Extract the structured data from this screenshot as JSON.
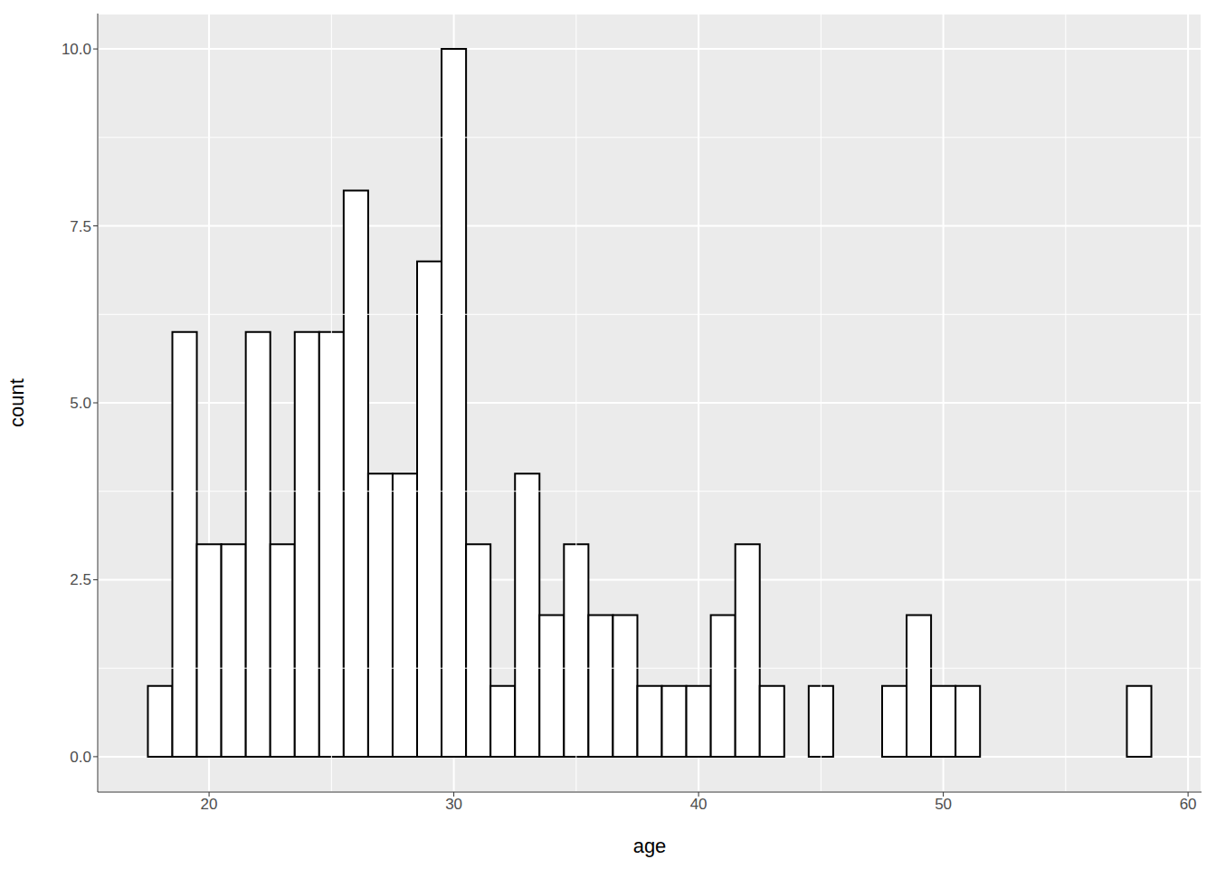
{
  "chart_data": {
    "type": "histogram",
    "x_label": "age",
    "y_label": "count",
    "bins": [
      17.5,
      18.5,
      19.5,
      20.5,
      21.5,
      22.5,
      23.5,
      24.5,
      25.5,
      26.5,
      27.5,
      28.5,
      29.5,
      30.5,
      31.5,
      32.5,
      33.5,
      34.5,
      35.5,
      36.5,
      37.5,
      38.5,
      39.5,
      40.5,
      41.5,
      42.5,
      43.5,
      44.5,
      45.5,
      46.5,
      47.5,
      48.5,
      49.5,
      50.5,
      51.5,
      52.5,
      53.5,
      54.5,
      55.5,
      56.5,
      57.5,
      58.5
    ],
    "counts": [
      1,
      6,
      3,
      3,
      6,
      3,
      6,
      6,
      8,
      4,
      4,
      7,
      10,
      3,
      1,
      4,
      2,
      3,
      2,
      2,
      1,
      1,
      1,
      2,
      3,
      1,
      0,
      1,
      0,
      0,
      1,
      2,
      1,
      1,
      0,
      0,
      0,
      0,
      0,
      0,
      1
    ],
    "color": "#ffffff",
    "xlim": [
      15.45,
      60.55
    ],
    "xticks": [
      20,
      30,
      40,
      50,
      60
    ],
    "ylim": [
      -0.5,
      10.5
    ],
    "yticks": [
      {
        "value": 0,
        "label": "0.0"
      },
      2.5,
      {
        "value": 5,
        "label": "5.0"
      },
      7.5,
      {
        "value": 10,
        "label": "10.0"
      }
    ],
    "grid": true
  }
}
